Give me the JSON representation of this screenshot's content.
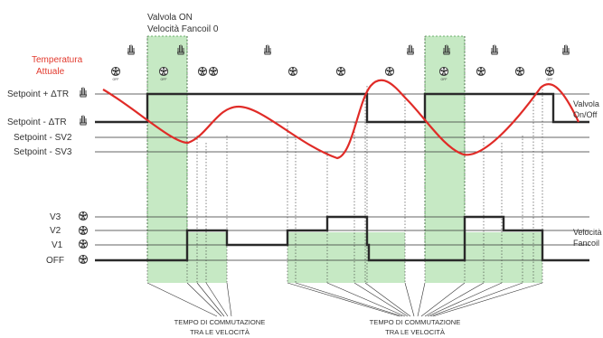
{
  "top_annotation": {
    "line1": "Valvola ON",
    "line2": "Velocità Fancoil 0"
  },
  "temperature_label": {
    "line1": "Temperatura",
    "line2": "Attuale",
    "color": "#e23a2e"
  },
  "setpoint_labels": {
    "sp_plus": "Setpoint + ΔTR",
    "sp_minus": "Setpoint - ΔTR",
    "sp_sv2": "Setpoint - SV2",
    "sp_sv3": "Setpoint - SV3"
  },
  "speed_labels": {
    "v3": "V3",
    "v2": "V2",
    "v1": "V1",
    "off": "OFF"
  },
  "right_labels": {
    "valve_line1": "Valvola",
    "valve_line2": "On/Off",
    "speed_line1": "Velocità",
    "speed_line2": "Fancoil"
  },
  "footer": {
    "left_line1": "TEMPO DI COMMUTAZIONE",
    "left_line2": "TRA LE VELOCITÀ",
    "right_line1": "TEMPO DI COMMUTAZIONE",
    "right_line2": "TRA LE VELOCITÀ"
  },
  "icons": {
    "hand": "hand-heat-icon",
    "fan": "fan-speed-icon",
    "fan_off_text": "OFF"
  },
  "colors": {
    "temperature_curve": "#e02b27",
    "switch_zone": "#c6e9c4",
    "signal": "#2a2a2a"
  }
}
